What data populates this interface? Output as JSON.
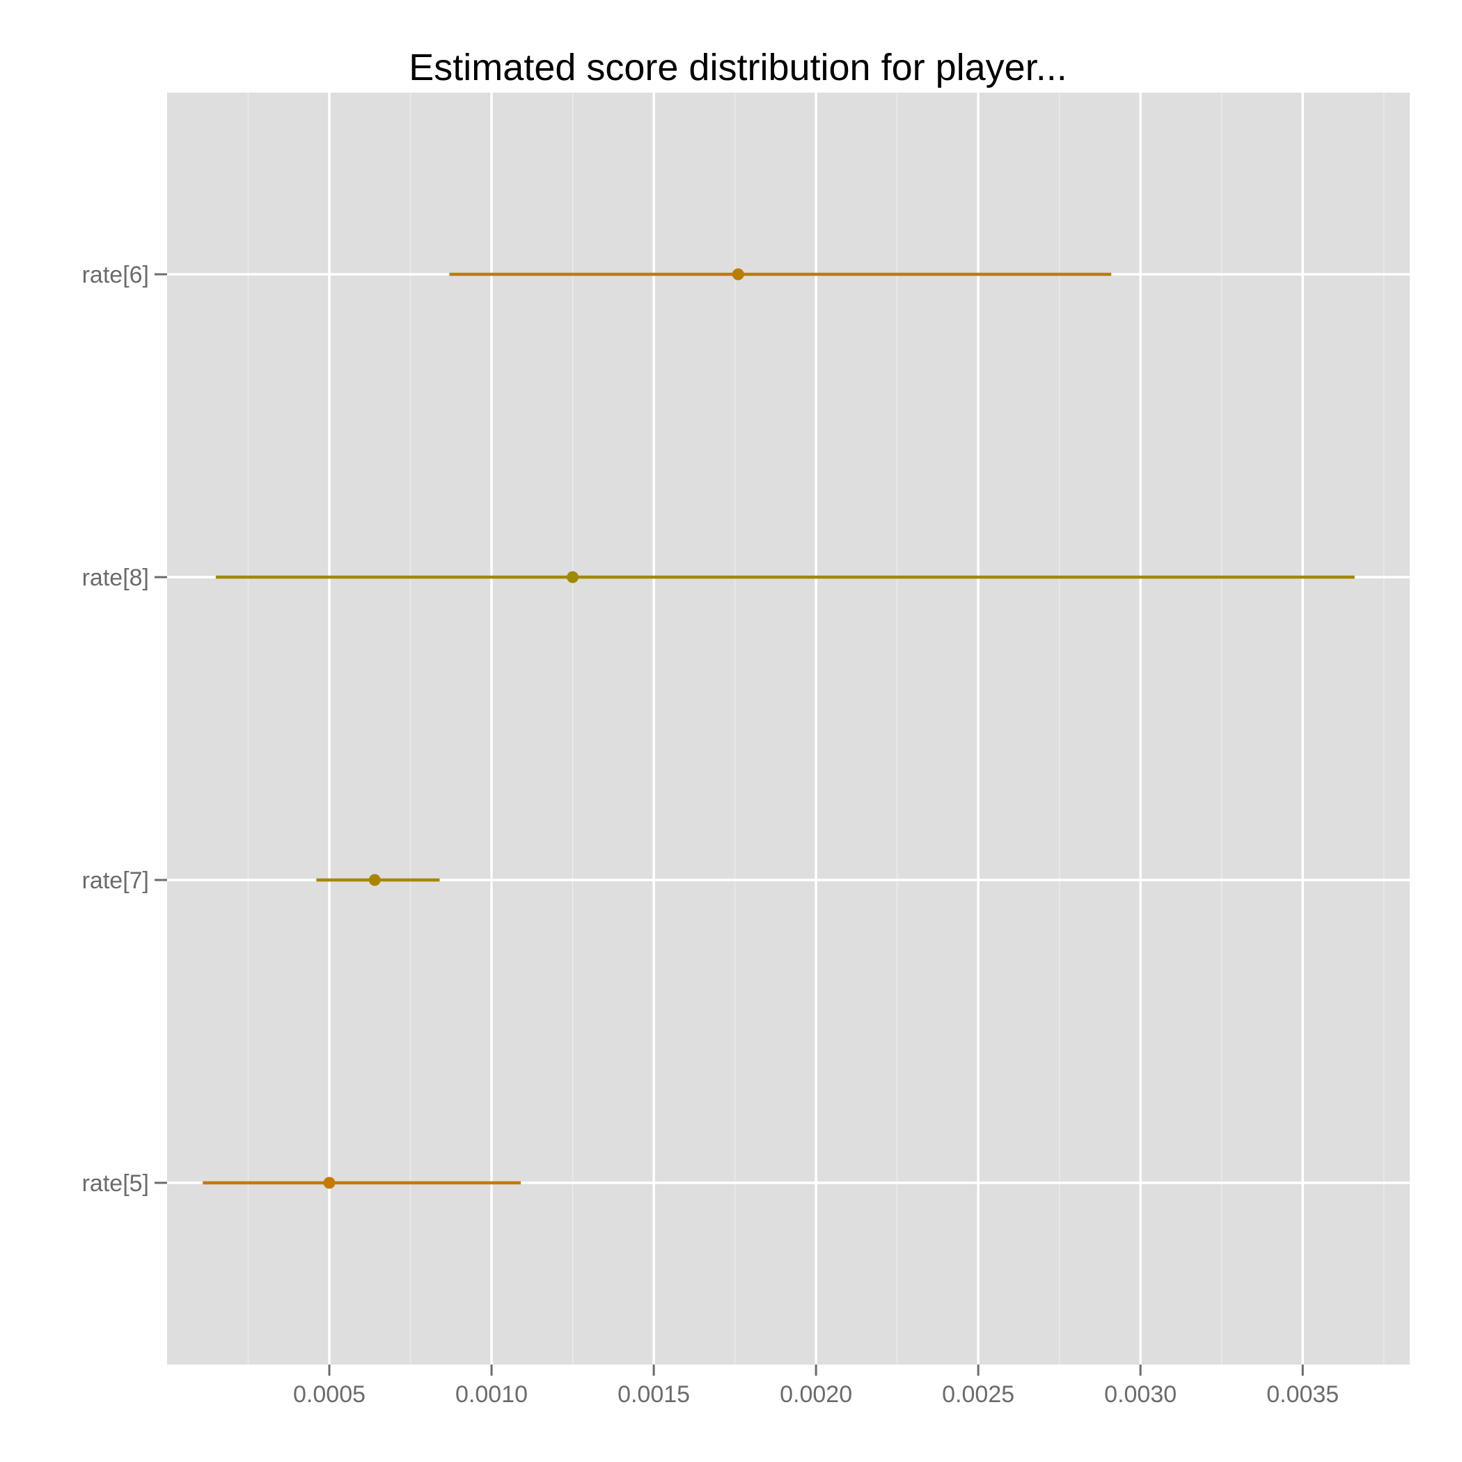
{
  "chart_data": {
    "type": "interval",
    "title": "Estimated score distribution for player...",
    "xlabel": "",
    "ylabel": "",
    "xlim": [
      0.0,
      0.00383
    ],
    "x_ticks": [
      0.0005,
      0.001,
      0.0015,
      0.002,
      0.0025,
      0.003,
      0.0035
    ],
    "x_tick_labels": [
      "0.0005",
      "0.0010",
      "0.0015",
      "0.0020",
      "0.0025",
      "0.0030",
      "0.0035"
    ],
    "x_minor_ticks": [
      0.00025,
      0.00075,
      0.00125,
      0.00175,
      0.00225,
      0.00275,
      0.00325,
      0.00375
    ],
    "categories": [
      "rate[6]",
      "rate[8]",
      "rate[7]",
      "rate[5]"
    ],
    "series": [
      {
        "category": "rate[6]",
        "estimate": 0.00176,
        "low": 0.00087,
        "high": 0.00291,
        "color": "#B87F00"
      },
      {
        "category": "rate[8]",
        "estimate": 0.00125,
        "low": 0.00015,
        "high": 0.00366,
        "color": "#A08A00"
      },
      {
        "category": "rate[7]",
        "estimate": 0.00064,
        "low": 0.00046,
        "high": 0.00084,
        "color": "#AA8600"
      },
      {
        "category": "rate[5]",
        "estimate": 0.0005,
        "low": 0.00011,
        "high": 0.00109,
        "color": "#C77900"
      }
    ],
    "grid": true,
    "background": "#DEDEDE",
    "legend": "none"
  }
}
